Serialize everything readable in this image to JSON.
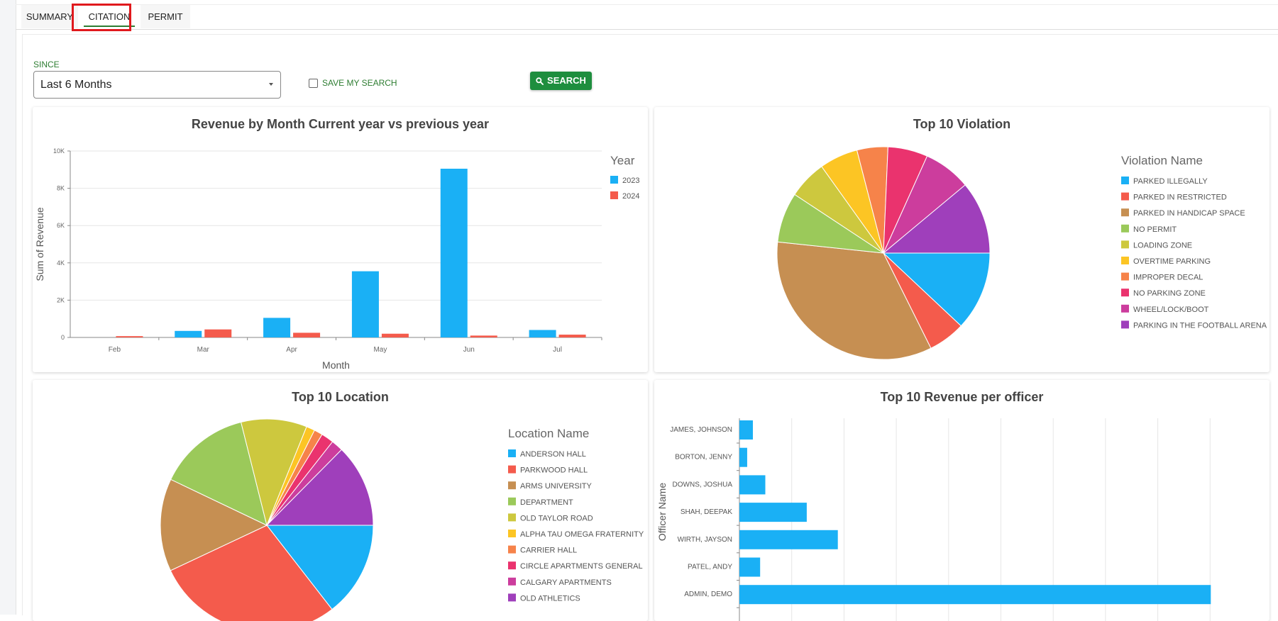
{
  "tabs": [
    {
      "label": "SUMMARY",
      "active": false
    },
    {
      "label": "CITATION",
      "active": true
    },
    {
      "label": "PERMIT",
      "active": false
    }
  ],
  "filters": {
    "since_label": "SINCE",
    "since_value": "Last 6 Months",
    "save_search_label": "SAVE MY SEARCH",
    "save_search_checked": false,
    "search_button": "SEARCH"
  },
  "colors": {
    "accent": "#2e7d32",
    "button": "#1e8e3e",
    "highlight": "#e0191d"
  },
  "chart_data": [
    {
      "id": "revenue",
      "type": "bar",
      "title": "Revenue by Month Current year vs previous year",
      "xlabel": "Month",
      "ylabel": "Sum of Revenue",
      "ylim": [
        0,
        10000
      ],
      "y_ticks": [
        "0",
        "2K",
        "4K",
        "6K",
        "8K",
        "10K"
      ],
      "categories": [
        "Feb",
        "Mar",
        "Apr",
        "May",
        "Jun",
        "Jul"
      ],
      "legend_title": "Year",
      "series": [
        {
          "name": "2023",
          "color": "#1ab0f5",
          "values": [
            0,
            350,
            1050,
            3550,
            9050,
            400
          ]
        },
        {
          "name": "2024",
          "color": "#f45b4c",
          "values": [
            70,
            430,
            250,
            200,
            100,
            150
          ]
        }
      ]
    },
    {
      "id": "violation",
      "type": "pie",
      "title": "Top 10 Violation",
      "legend_title": "Violation Name",
      "labels": [
        "PARKED ILLEGALLY",
        "PARKED IN RESTRICTED",
        "PARKED IN HANDICAP SPACE",
        "NO PERMIT",
        "LOADING ZONE",
        "OVERTIME PARKING",
        "IMPROPER DECAL",
        "NO PARKING ZONE",
        "WHEEL/LOCK/BOOT",
        "PARKING IN THE FOOTBALL ARENA"
      ],
      "values": [
        11.5,
        5.4,
        32.6,
        7.3,
        5.6,
        5.6,
        4.5,
        5.8,
        6.9,
        10.6
      ],
      "colors": [
        "#1ab0f5",
        "#f45b4c",
        "#c68f52",
        "#9bc95a",
        "#cdc83e",
        "#fcc524",
        "#f6834a",
        "#ea336e",
        "#cc3d9d",
        "#9f3fbb"
      ]
    },
    {
      "id": "location",
      "type": "pie",
      "title": "Top 10 Location",
      "legend_title": "Location Name",
      "labels": [
        "ANDERSON HALL",
        "PARKWOOD HALL",
        "ARMS UNIVERSITY",
        "DEPARTMENT",
        "OLD TAYLOR ROAD",
        "ALPHA TAU OMEGA FRATERNITY",
        "CARRIER HALL",
        "CIRCLE APARTMENTS GENERAL",
        "CALGARY APARTMENTS",
        "OLD ATHLETICS"
      ],
      "values": [
        14.5,
        28.5,
        14.1,
        14.0,
        10.0,
        1.3,
        1.3,
        1.9,
        1.8,
        12.6
      ],
      "colors": [
        "#1ab0f5",
        "#f45b4c",
        "#c68f52",
        "#9bc95a",
        "#cdc83e",
        "#fcc524",
        "#f6834a",
        "#ea336e",
        "#cc3d9d",
        "#9f3fbb"
      ]
    },
    {
      "id": "officer",
      "type": "bar",
      "orientation": "horizontal",
      "title": "Top 10 Revenue per officer",
      "ylabel": "Officer Name",
      "xlim": [
        0,
        10000
      ],
      "categories": [
        "JAMES, JOHNSON",
        "BORTON, JENNY",
        "DOWNS, JOSHUA",
        "SHAH, DEEPAK",
        "WIRTH, JAYSON",
        "PATEL, ANDY",
        "ADMIN, DEMO"
      ],
      "values": [
        260,
        150,
        500,
        1300,
        1900,
        400,
        9100
      ],
      "color": "#1ab0f5"
    }
  ]
}
